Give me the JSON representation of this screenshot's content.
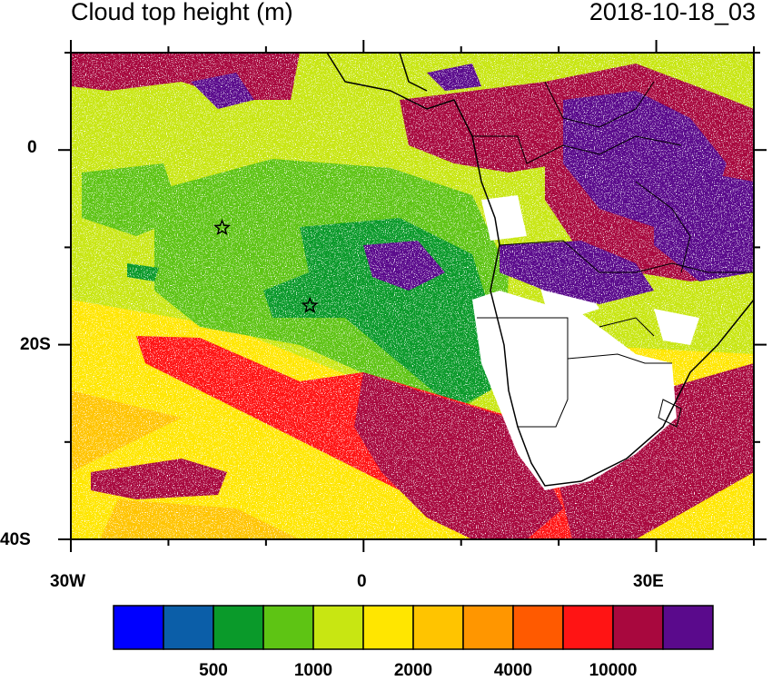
{
  "title": {
    "left": "Cloud top height (m)",
    "right": "2018-10-18_03"
  },
  "map": {
    "lon_range": [
      -30,
      40
    ],
    "lat_range": [
      -40,
      10
    ],
    "y_tick_labels": [
      "0",
      "20S",
      "40S"
    ],
    "x_tick_labels": [
      "30W",
      "0",
      "30E"
    ],
    "markers": [
      {
        "name": "star-marker",
        "lon": -14.5,
        "lat": -8
      },
      {
        "name": "star-marker",
        "lon": -5.5,
        "lat": -16
      }
    ]
  },
  "colorbar": {
    "colors": [
      "#0000ff",
      "#0b5ea8",
      "#0a9a2a",
      "#5ec414",
      "#c8e612",
      "#ffe600",
      "#ffc400",
      "#ff9600",
      "#ff5a00",
      "#ff1414",
      "#a8083e",
      "#5a0a8c"
    ],
    "labels": [
      "500",
      "1000",
      "2000",
      "4000",
      "10000"
    ]
  }
}
